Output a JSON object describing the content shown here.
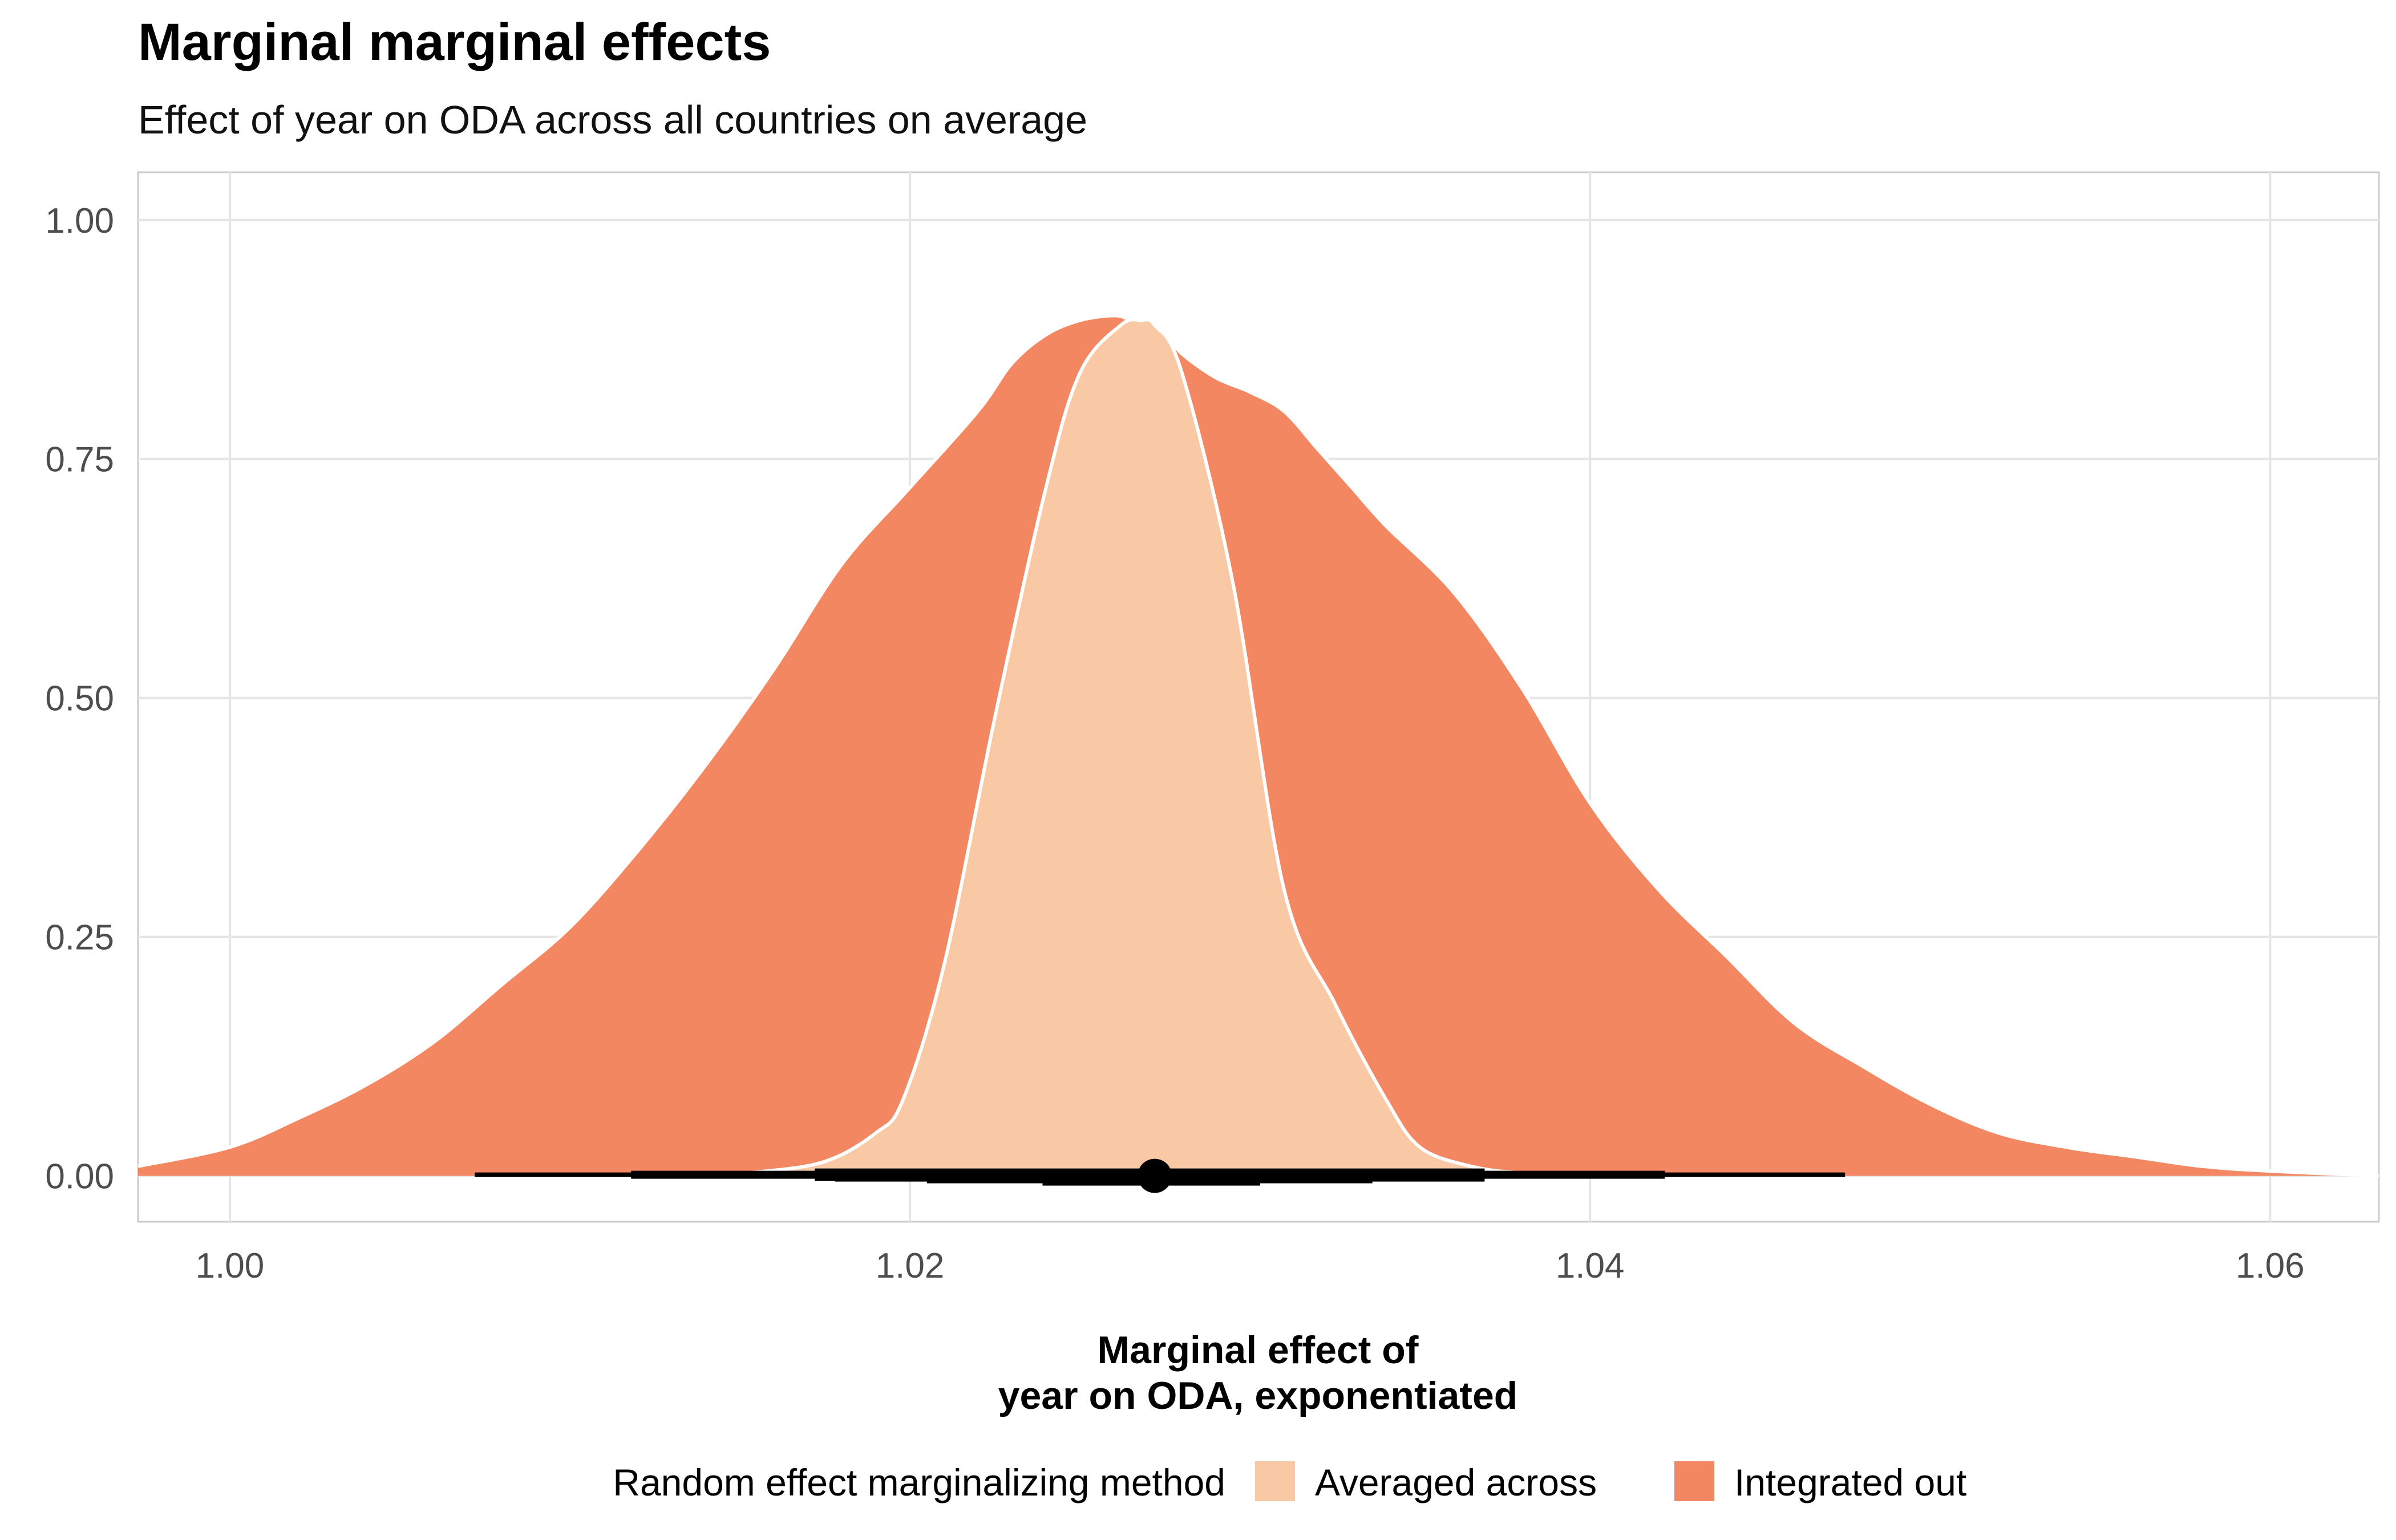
{
  "chart_data": {
    "type": "area",
    "title": "Marginal marginal effects",
    "subtitle": "Effect of year on ODA across all countries on average",
    "xlabel": "Marginal effect of\nyear on ODA, exponentiated",
    "ylabel": "",
    "xlim": [
      0.9973,
      1.0632
    ],
    "ylim": [
      -0.048,
      1.05
    ],
    "x_ticks": [
      1.0,
      1.02,
      1.04,
      1.06
    ],
    "x_tick_labels": [
      "1.00",
      "1.02",
      "1.04",
      "1.06"
    ],
    "y_ticks": [
      0.0,
      0.25,
      0.5,
      0.75,
      1.0
    ],
    "y_tick_labels": [
      "0.00",
      "0.25",
      "0.50",
      "0.75",
      "1.00"
    ],
    "grid": true,
    "legend": {
      "title": "Random effect marginalizing method",
      "position": "bottom",
      "entries": [
        "Averaged across",
        "Integrated out"
      ]
    },
    "colors": {
      "averaged_across": "#F9C9A5",
      "integrated_out": "#F28762",
      "outline": "#ffffff",
      "interval": "#000000"
    },
    "series": [
      {
        "name": "Integrated out",
        "color": "#F28762",
        "x": [
          0.9973,
          1.0,
          1.002,
          1.004,
          1.006,
          1.008,
          1.01,
          1.012,
          1.014,
          1.016,
          1.018,
          1.02,
          1.022,
          1.023,
          1.024,
          1.025,
          1.026,
          1.0265,
          1.0275,
          1.028,
          1.029,
          1.03,
          1.031,
          1.032,
          1.033,
          1.034,
          1.036,
          1.038,
          1.04,
          1.042,
          1.044,
          1.046,
          1.048,
          1.05,
          1.052,
          1.054,
          1.056,
          1.058,
          1.06,
          1.0632
        ],
        "y": [
          0.01,
          0.03,
          0.06,
          0.095,
          0.14,
          0.2,
          0.26,
          0.34,
          0.43,
          0.53,
          0.64,
          0.72,
          0.8,
          0.85,
          0.88,
          0.895,
          0.9,
          0.895,
          0.88,
          0.86,
          0.835,
          0.82,
          0.8,
          0.76,
          0.72,
          0.68,
          0.61,
          0.51,
          0.39,
          0.3,
          0.23,
          0.16,
          0.115,
          0.075,
          0.045,
          0.03,
          0.02,
          0.01,
          0.005,
          0.0
        ]
      },
      {
        "name": "Averaged across",
        "color": "#F9C9A5",
        "x": [
          1.0135,
          1.0155,
          1.0175,
          1.019,
          1.0198,
          1.021,
          1.0225,
          1.024,
          1.025,
          1.0262,
          1.0268,
          1.0272,
          1.028,
          1.0295,
          1.031,
          1.0325,
          1.034,
          1.035,
          1.0365,
          1.038,
          1.04,
          1.0415
        ],
        "y": [
          0.0,
          0.004,
          0.015,
          0.045,
          0.08,
          0.22,
          0.48,
          0.72,
          0.84,
          0.89,
          0.895,
          0.89,
          0.84,
          0.62,
          0.3,
          0.18,
          0.08,
          0.03,
          0.01,
          0.003,
          0.001,
          0.0
        ]
      }
    ],
    "intervals": [
      {
        "name": "Integrated out",
        "width": [
          "95%",
          "80%",
          "50%"
        ],
        "ranges": [
          [
            1.0072,
            1.0475
          ],
          [
            1.0118,
            1.0422
          ],
          [
            1.0172,
            1.0369
          ]
        ]
      },
      {
        "name": "Averaged across",
        "width": [
          "95%",
          "80%",
          "50%"
        ],
        "ranges": [
          [
            1.0178,
            1.0369
          ],
          [
            1.0205,
            1.0336
          ],
          [
            1.0239,
            1.0303
          ]
        ]
      }
    ],
    "point_estimate": {
      "x": 1.0272,
      "y": 0.0
    }
  }
}
